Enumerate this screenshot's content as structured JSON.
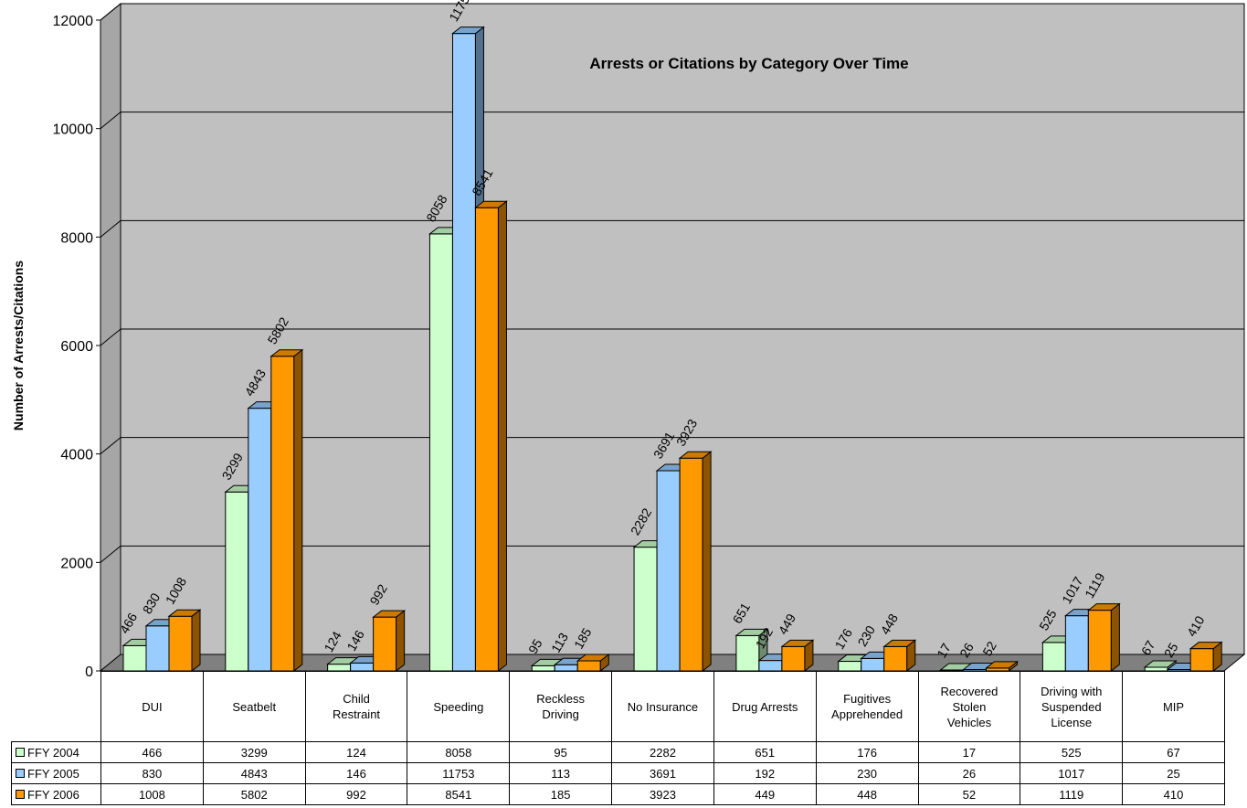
{
  "chart_data": {
    "type": "bar",
    "title": "Arrests or Citations by Category Over Time",
    "xlabel": "",
    "ylabel": "Number of Arrests/Citations",
    "ylim": [
      0,
      12000
    ],
    "yticks": [
      0,
      2000,
      4000,
      6000,
      8000,
      10000,
      12000
    ],
    "grid": true,
    "categories": [
      "DUI",
      "Seatbelt",
      "Child Restraint",
      "Speeding",
      "Reckless Driving",
      "No Insurance",
      "Drug Arrests",
      "Fugitives Apprehended",
      "Recovered Stolen Vehicles",
      "Driving with Suspended License",
      "MIP"
    ],
    "category_lines": [
      [
        "DUI"
      ],
      [
        "Seatbelt"
      ],
      [
        "Child",
        "Restraint"
      ],
      [
        "Speeding"
      ],
      [
        "Reckless",
        "Driving"
      ],
      [
        "No Insurance"
      ],
      [
        "Drug Arrests"
      ],
      [
        "Fugitives",
        "Apprehended"
      ],
      [
        "Recovered",
        "Stolen",
        "Vehicles"
      ],
      [
        "Driving with",
        "Suspended",
        "License"
      ],
      [
        "MIP"
      ]
    ],
    "series": [
      {
        "name": "FFY 2004",
        "color": "#ccffcc",
        "values": [
          466,
          3299,
          124,
          8058,
          95,
          2282,
          651,
          176,
          17,
          525,
          67
        ]
      },
      {
        "name": "FFY 2005",
        "color": "#99ccff",
        "values": [
          830,
          4843,
          146,
          11753,
          113,
          3691,
          192,
          230,
          26,
          1017,
          25
        ]
      },
      {
        "name": "FFY 2006",
        "color": "#ff9900",
        "values": [
          1008,
          5802,
          992,
          8541,
          185,
          3923,
          449,
          448,
          52,
          1119,
          410
        ]
      }
    ],
    "legend": "data-table"
  }
}
